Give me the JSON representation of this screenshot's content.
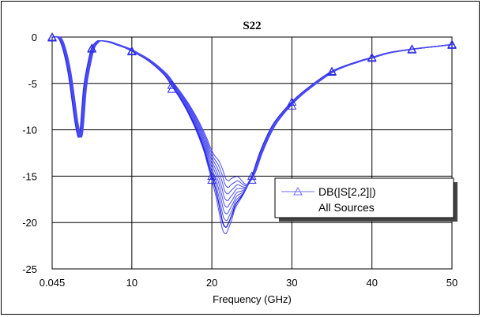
{
  "chart_data": {
    "type": "line",
    "title": "S22",
    "xlabel": "Frequency (GHz)",
    "ylabel": "",
    "xlim": [
      0.045,
      50
    ],
    "ylim": [
      -25,
      0
    ],
    "x_ticks": [
      0.045,
      10,
      20,
      30,
      40,
      50
    ],
    "x_tick_labels": [
      "0.045",
      "10",
      "20",
      "30",
      "40",
      "50"
    ],
    "y_ticks": [
      0,
      -5,
      -10,
      -15,
      -20,
      -25
    ],
    "y_tick_labels": [
      "0",
      "-5",
      "-10",
      "-15",
      "-20",
      "-25"
    ],
    "grid": true,
    "legend_position": "right",
    "legend": {
      "series_label": "DB(|S[2,2]|)",
      "sub_label": "All Sources"
    },
    "marker": "triangle",
    "line_color": "#0000FF",
    "series": [
      {
        "name": "DB(|S[2,2]|)",
        "x": [
          0.045,
          1,
          2,
          3,
          3.5,
          4,
          4.5,
          5,
          5.6,
          6,
          7,
          8,
          9,
          10,
          12,
          14,
          15,
          16,
          17,
          18,
          19,
          19.5,
          20,
          20.5,
          21,
          21.3,
          21.5,
          21.8,
          22,
          22.5,
          23,
          24,
          25,
          26,
          27,
          28,
          30,
          32,
          35,
          38,
          40,
          42,
          45,
          48,
          50
        ],
        "y": [
          0,
          -0.3,
          -3.5,
          -9.5,
          -10.5,
          -5.5,
          -3,
          -1.2,
          -0.5,
          -0.4,
          -0.5,
          -0.8,
          -1.1,
          -1.5,
          -2.5,
          -4,
          -5.2,
          -6.5,
          -8,
          -9.8,
          -12,
          -13.5,
          -15,
          -16.5,
          -18.5,
          -19.8,
          -20.3,
          -20.5,
          -20.2,
          -19.2,
          -18,
          -16.8,
          -15,
          -12.5,
          -10.5,
          -9,
          -7,
          -5.5,
          -3.7,
          -2.7,
          -2.2,
          -1.7,
          -1.3,
          -1.0,
          -0.8
        ]
      }
    ]
  }
}
